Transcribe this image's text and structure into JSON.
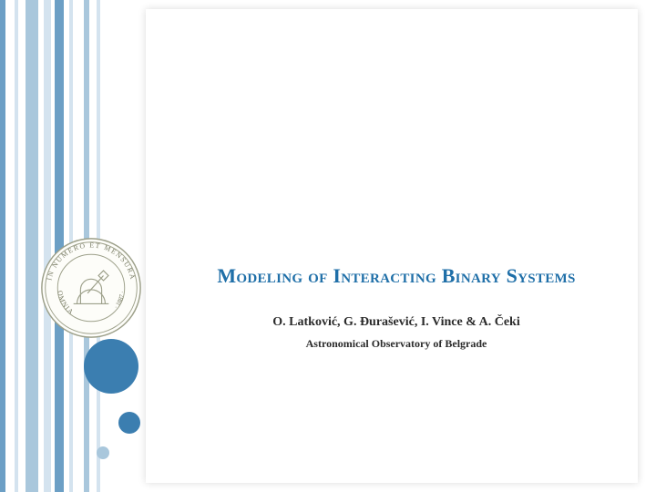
{
  "stripes": [
    {
      "width": 6,
      "color": "#6c9fc5"
    },
    {
      "width": 10,
      "color": "#ffffff"
    },
    {
      "width": 4,
      "color": "#d4e3ef"
    },
    {
      "width": 8,
      "color": "#ffffff"
    },
    {
      "width": 14,
      "color": "#a9c7dc"
    },
    {
      "width": 6,
      "color": "#ffffff"
    },
    {
      "width": 8,
      "color": "#d4e3ef"
    },
    {
      "width": 4,
      "color": "#ffffff"
    },
    {
      "width": 10,
      "color": "#6c9fc5"
    },
    {
      "width": 6,
      "color": "#ffffff"
    },
    {
      "width": 4,
      "color": "#d4e3ef"
    },
    {
      "width": 12,
      "color": "#ffffff"
    },
    {
      "width": 6,
      "color": "#a9c7dc"
    },
    {
      "width": 8,
      "color": "#ffffff"
    },
    {
      "width": 4,
      "color": "#d4e3ef"
    },
    {
      "width": 50,
      "color": "#ffffff"
    }
  ],
  "accent": {
    "circle_color": "#3b7eb0",
    "circle_sm_color": "#a9c7dc"
  },
  "seal": {
    "outer_text_top": "IN NUMERO ET MENSURA",
    "outer_text_left": "OMNIA",
    "year": "· 1887 ·",
    "stroke_color": "#9da08a",
    "fill_color": "#fdfdf9"
  },
  "title": "Modeling of Interacting Binary Systems",
  "authors": "O. Latković, G. Đurašević,  I. Vince  &  A. Čeki",
  "affiliation": "Astronomical Observatory of Belgrade",
  "title_color": "#1f6fa8"
}
